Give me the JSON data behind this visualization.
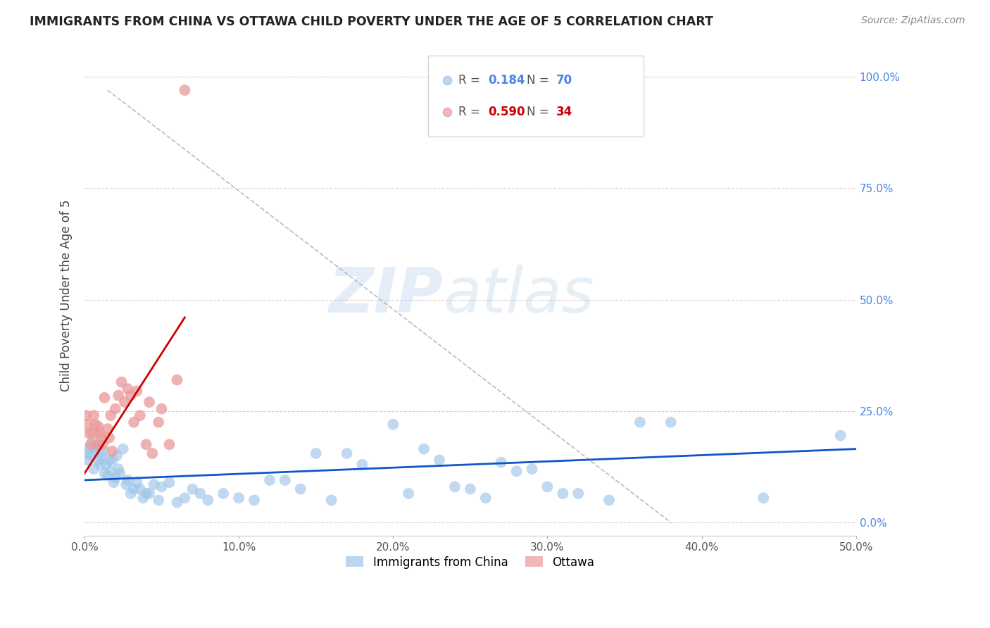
{
  "title": "IMMIGRANTS FROM CHINA VS OTTAWA CHILD POVERTY UNDER THE AGE OF 5 CORRELATION CHART",
  "source": "Source: ZipAtlas.com",
  "ylabel": "Child Poverty Under the Age of 5",
  "xlim": [
    0.0,
    0.5
  ],
  "ylim": [
    -0.03,
    1.05
  ],
  "yticks": [
    0.0,
    0.25,
    0.5,
    0.75,
    1.0
  ],
  "ytick_labels": [
    "0.0%",
    "25.0%",
    "50.0%",
    "75.0%",
    "100.0%"
  ],
  "xticks": [
    0.0,
    0.1,
    0.2,
    0.3,
    0.4,
    0.5
  ],
  "xtick_labels": [
    "0.0%",
    "10.0%",
    "20.0%",
    "30.0%",
    "40.0%",
    "50.0%"
  ],
  "color_blue": "#9fc5e8",
  "color_pink": "#ea9999",
  "color_trend_blue": "#1155cc",
  "color_trend_pink": "#cc0000",
  "color_right_ticks": "#4a86e8",
  "legend_R1": "0.184",
  "legend_N1": "70",
  "legend_R2": "0.590",
  "legend_N2": "34",
  "legend_label1": "Immigrants from China",
  "legend_label2": "Ottawa",
  "watermark_zip": "ZIP",
  "watermark_atlas": "atlas",
  "blue_scatter_x": [
    0.001,
    0.002,
    0.003,
    0.004,
    0.005,
    0.006,
    0.007,
    0.008,
    0.009,
    0.01,
    0.011,
    0.012,
    0.013,
    0.014,
    0.015,
    0.016,
    0.017,
    0.018,
    0.019,
    0.02,
    0.021,
    0.022,
    0.023,
    0.025,
    0.027,
    0.028,
    0.03,
    0.032,
    0.034,
    0.036,
    0.038,
    0.04,
    0.042,
    0.045,
    0.048,
    0.05,
    0.055,
    0.06,
    0.065,
    0.07,
    0.075,
    0.08,
    0.09,
    0.1,
    0.11,
    0.12,
    0.13,
    0.14,
    0.15,
    0.16,
    0.17,
    0.18,
    0.2,
    0.21,
    0.22,
    0.23,
    0.24,
    0.25,
    0.26,
    0.27,
    0.28,
    0.29,
    0.3,
    0.31,
    0.32,
    0.34,
    0.36,
    0.38,
    0.44,
    0.49
  ],
  "blue_scatter_y": [
    0.155,
    0.14,
    0.165,
    0.15,
    0.18,
    0.12,
    0.16,
    0.17,
    0.14,
    0.13,
    0.15,
    0.16,
    0.11,
    0.13,
    0.105,
    0.14,
    0.115,
    0.14,
    0.09,
    0.1,
    0.15,
    0.12,
    0.11,
    0.165,
    0.085,
    0.095,
    0.065,
    0.075,
    0.09,
    0.075,
    0.055,
    0.065,
    0.065,
    0.085,
    0.05,
    0.08,
    0.09,
    0.045,
    0.055,
    0.075,
    0.065,
    0.05,
    0.065,
    0.055,
    0.05,
    0.095,
    0.095,
    0.075,
    0.155,
    0.05,
    0.155,
    0.13,
    0.22,
    0.065,
    0.165,
    0.14,
    0.08,
    0.075,
    0.055,
    0.135,
    0.115,
    0.12,
    0.08,
    0.065,
    0.065,
    0.05,
    0.225,
    0.225,
    0.055,
    0.195
  ],
  "pink_scatter_x": [
    0.001,
    0.002,
    0.003,
    0.004,
    0.005,
    0.006,
    0.007,
    0.008,
    0.009,
    0.01,
    0.011,
    0.012,
    0.013,
    0.015,
    0.016,
    0.017,
    0.018,
    0.02,
    0.022,
    0.024,
    0.026,
    0.028,
    0.03,
    0.032,
    0.034,
    0.036,
    0.04,
    0.042,
    0.044,
    0.048,
    0.05,
    0.055,
    0.06,
    0.065
  ],
  "pink_scatter_y": [
    0.24,
    0.22,
    0.2,
    0.175,
    0.2,
    0.24,
    0.22,
    0.175,
    0.215,
    0.2,
    0.19,
    0.175,
    0.28,
    0.21,
    0.19,
    0.24,
    0.16,
    0.255,
    0.285,
    0.315,
    0.27,
    0.3,
    0.285,
    0.225,
    0.295,
    0.24,
    0.175,
    0.27,
    0.155,
    0.225,
    0.255,
    0.175,
    0.32,
    0.97
  ],
  "blue_trend_x": [
    0.0,
    0.5
  ],
  "blue_trend_y": [
    0.095,
    0.165
  ],
  "pink_trend_x": [
    0.0,
    0.065
  ],
  "pink_trend_y": [
    0.11,
    0.46
  ],
  "gray_line_x": [
    0.015,
    0.38
  ],
  "gray_line_y": [
    0.97,
    0.0
  ]
}
